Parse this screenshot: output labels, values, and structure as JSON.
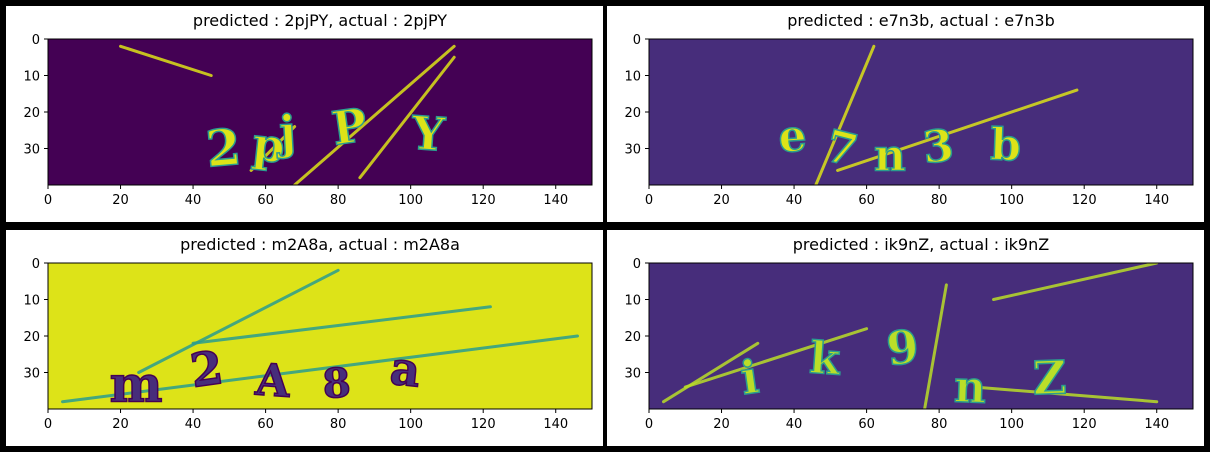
{
  "colors": {
    "background": "#000000",
    "panel": "#ffffff",
    "viridis_dark": "#440154",
    "viridis_purple": "#472d7b",
    "viridis_yellow": "#dde318",
    "viridis_green": "#bade28",
    "viridis_teal": "#2a9d8f"
  },
  "chart_data": [
    {
      "type": "heatmap",
      "title": "predicted : 2pjPY, actual : 2pjPY",
      "predicted": "2pjPY",
      "actual": "2pjPY",
      "image_width": 150,
      "image_height": 40,
      "xlim": [
        0,
        150
      ],
      "ylim": [
        40,
        0
      ],
      "xticks": [
        "0",
        "20",
        "40",
        "60",
        "80",
        "100",
        "120",
        "140"
      ],
      "yticks": [
        "0",
        "10",
        "20",
        "30"
      ],
      "colormap": "viridis",
      "background_color": "#440154",
      "foreground_color": "#dde318",
      "captcha_glyphs": [
        "2",
        "p",
        "j",
        "P",
        "Y"
      ]
    },
    {
      "type": "heatmap",
      "title": "predicted : e7n3b, actual : e7n3b",
      "predicted": "e7n3b",
      "actual": "e7n3b",
      "image_width": 150,
      "image_height": 40,
      "xlim": [
        0,
        150
      ],
      "ylim": [
        40,
        0
      ],
      "xticks": [
        "0",
        "20",
        "40",
        "60",
        "80",
        "100",
        "120",
        "140"
      ],
      "yticks": [
        "0",
        "10",
        "20",
        "30"
      ],
      "colormap": "viridis",
      "background_color": "#472d7b",
      "foreground_color": "#dde318",
      "captcha_glyphs": [
        "e",
        "7",
        "n",
        "3",
        "b"
      ]
    },
    {
      "type": "heatmap",
      "title": "predicted : m2A8a, actual : m2A8a",
      "predicted": "m2A8a",
      "actual": "m2A8a",
      "image_width": 150,
      "image_height": 40,
      "xlim": [
        0,
        150
      ],
      "ylim": [
        40,
        0
      ],
      "xticks": [
        "0",
        "20",
        "40",
        "60",
        "80",
        "100",
        "120",
        "140"
      ],
      "yticks": [
        "0",
        "10",
        "20",
        "30"
      ],
      "colormap": "viridis",
      "background_color": "#dde318",
      "foreground_color": "#472d7b",
      "captcha_glyphs": [
        "m",
        "2",
        "A",
        "8",
        "a"
      ]
    },
    {
      "type": "heatmap",
      "title": "predicted : ik9nZ, actual : ik9nZ",
      "predicted": "ik9nZ",
      "actual": "ik9nZ",
      "image_width": 150,
      "image_height": 40,
      "xlim": [
        0,
        150
      ],
      "ylim": [
        40,
        0
      ],
      "xticks": [
        "0",
        "20",
        "40",
        "60",
        "80",
        "100",
        "120",
        "140"
      ],
      "yticks": [
        "0",
        "10",
        "20",
        "30"
      ],
      "colormap": "viridis",
      "background_color": "#472d7b",
      "foreground_color": "#bade28",
      "captcha_glyphs": [
        "i",
        "k",
        "9",
        "n",
        "Z"
      ]
    }
  ]
}
